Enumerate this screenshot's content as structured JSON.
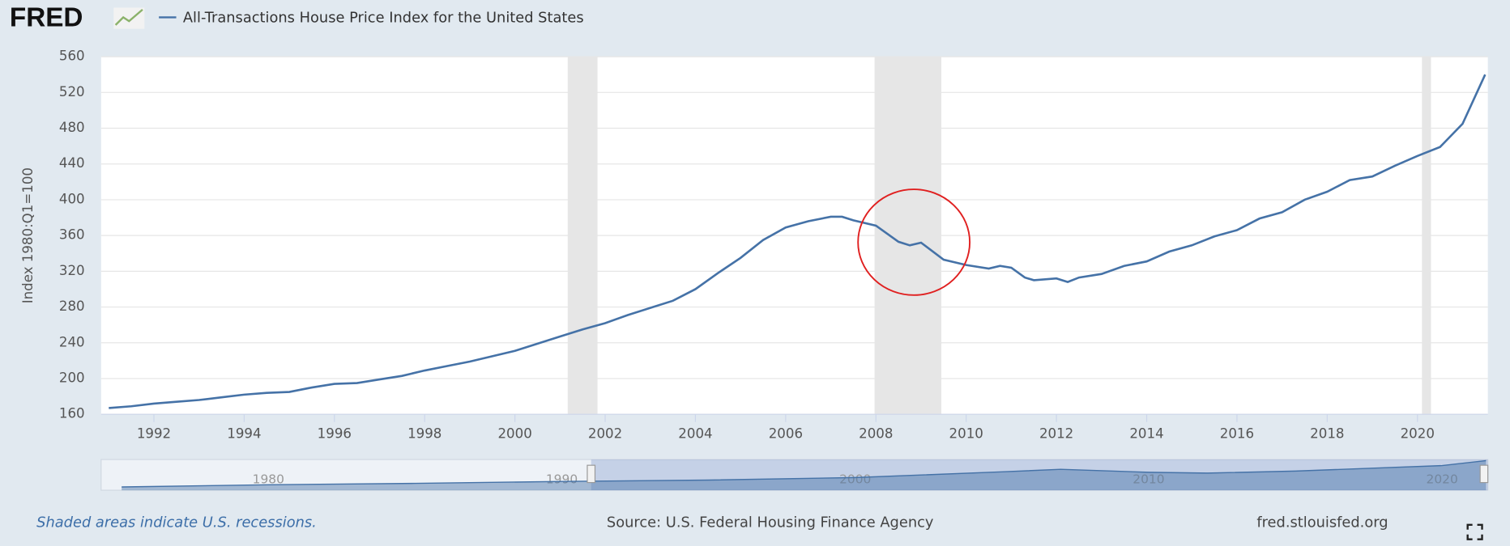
{
  "logo": "FRED",
  "chart_data": {
    "type": "line",
    "ylabel": "Index 1980:Q1=100",
    "x": [
      1991,
      1991.5,
      1992,
      1992.5,
      1993,
      1993.5,
      1994,
      1994.5,
      1995,
      1995.5,
      1996,
      1996.5,
      1997,
      1997.5,
      1998,
      1998.5,
      1999,
      1999.5,
      2000,
      2000.5,
      2001,
      2001.5,
      2002,
      2002.5,
      2003,
      2003.5,
      2004,
      2004.5,
      2005,
      2005.5,
      2006,
      2006.5,
      2007,
      2007.25,
      2007.5,
      2008,
      2008.5,
      2008.75,
      2009,
      2009.5,
      2010,
      2010.5,
      2010.75,
      2011,
      2011.3,
      2011.5,
      2012,
      2012.25,
      2012.5,
      2013,
      2013.5,
      2014,
      2014.5,
      2015,
      2015.5,
      2016,
      2016.5,
      2017,
      2017.5,
      2018,
      2018.5,
      2019,
      2019.5,
      2020,
      2020.5,
      2021,
      2021.5
    ],
    "series": [
      {
        "name": "All-Transactions House Price Index for the United States",
        "color": "#4572a7",
        "values": [
          167,
          169,
          172,
          174,
          176,
          179,
          182,
          184,
          185,
          190,
          194,
          195,
          199,
          203,
          209,
          214,
          219,
          225,
          231,
          239,
          247,
          255,
          262,
          271,
          279,
          287,
          300,
          318,
          335,
          355,
          369,
          376,
          381,
          381,
          377,
          371,
          353,
          349,
          352,
          333,
          327,
          323,
          326,
          324,
          313,
          310,
          312,
          308,
          313,
          317,
          326,
          331,
          342,
          349,
          359,
          366,
          379,
          386,
          400,
          409,
          422,
          426,
          438,
          449,
          459,
          485,
          540
        ]
      }
    ],
    "xlim": [
      1990.83,
      2021.56
    ],
    "ylim": [
      160,
      560
    ],
    "xticks": [
      1992,
      1994,
      1996,
      1998,
      2000,
      2002,
      2004,
      2006,
      2008,
      2010,
      2012,
      2014,
      2016,
      2018,
      2020
    ],
    "yticks": [
      160,
      200,
      240,
      280,
      320,
      360,
      400,
      440,
      480,
      520,
      560
    ],
    "grid": true,
    "recessions": [
      [
        2001.17,
        2001.83
      ],
      [
        2007.97,
        2009.45
      ],
      [
        2020.1,
        2020.3
      ]
    ],
    "recession_color": "#e6e6e6",
    "navigator": {
      "x": [
        1975,
        1980,
        1985,
        1990,
        1995,
        2000,
        2005,
        2007,
        2010,
        2012,
        2015,
        2020,
        2021.5
      ],
      "values": [
        60,
        100,
        125,
        160,
        185,
        231,
        335,
        381,
        327,
        312,
        349,
        449,
        540
      ],
      "xlim": [
        1974.3,
        2021.56
      ],
      "ylim": [
        0,
        560
      ],
      "xticks": [
        1980,
        1990,
        2000,
        2010,
        2020
      ],
      "selection": [
        1991,
        2021.56
      ]
    }
  },
  "footer": {
    "note": "Shaded areas indicate U.S. recessions.",
    "source": "Source: U.S. Federal Housing Finance Agency",
    "site": "fred.stlouisfed.org"
  }
}
